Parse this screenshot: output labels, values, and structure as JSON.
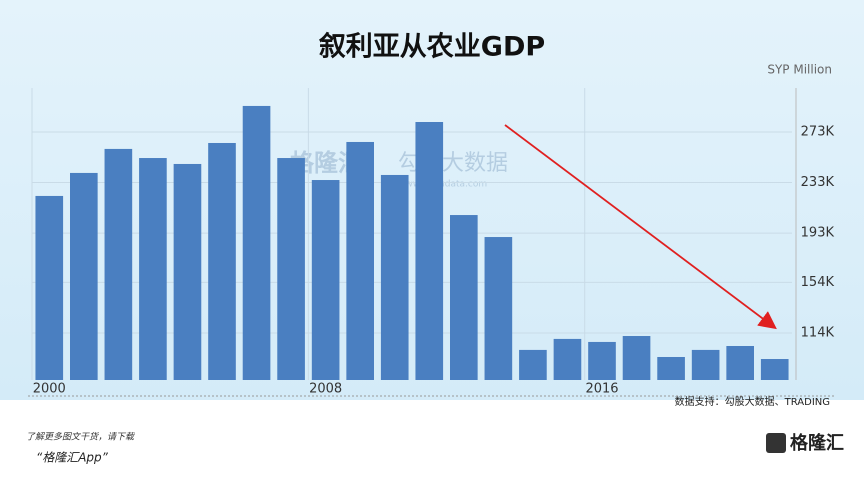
{
  "chart_data": {
    "type": "bar",
    "title": "叙利亚从农业GDP",
    "unit_label": "SYP Million",
    "categories": [
      "2000",
      null,
      null,
      null,
      null,
      null,
      null,
      null,
      "2008",
      null,
      null,
      null,
      null,
      null,
      null,
      null,
      "2016",
      null,
      null,
      null,
      null,
      null
    ],
    "values": [
      222400,
      240600,
      259600,
      252400,
      247700,
      264300,
      293600,
      252400,
      235000,
      265100,
      239000,
      280900,
      207300,
      189900,
      100600,
      109300,
      106900,
      111600,
      95000,
      100600,
      103700,
      93400
    ],
    "color": "#4a7fc1",
    "ylim": [
      76800,
      307800
    ],
    "yticks": [
      {
        "value": 114000,
        "label": "114K"
      },
      {
        "value": 154000,
        "label": "154K"
      },
      {
        "value": 193000,
        "label": "193K"
      },
      {
        "value": 233000,
        "label": "233K"
      },
      {
        "value": 273000,
        "label": "273K"
      }
    ],
    "grid": true,
    "source": "数据支持：勾股大数据、TRADING"
  },
  "watermark": {
    "brand": "格隆汇",
    "name": "勾股大数据",
    "url": "www.gogudata.com"
  },
  "footer": {
    "line1": "了解更多图文干货，请下载",
    "line2": "“格隆汇App”",
    "logo": "格隆汇"
  }
}
